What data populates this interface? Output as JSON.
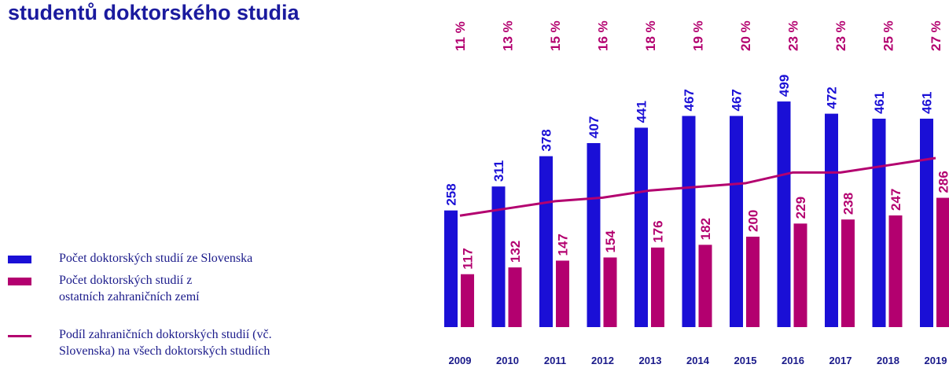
{
  "chart_data": {
    "type": "bar",
    "title": "studentů doktorského studia",
    "categories": [
      "2009",
      "2010",
      "2011",
      "2012",
      "2013",
      "2014",
      "2015",
      "2016",
      "2017",
      "2018",
      "2019"
    ],
    "series": [
      {
        "name": "Počet doktorských studií ze Slovenska",
        "color": "#1a0fd6",
        "values": [
          258,
          311,
          378,
          407,
          441,
          467,
          467,
          499,
          472,
          461,
          461
        ]
      },
      {
        "name": "Počet doktorských studií z ostatních zahraničních zemí",
        "color": "#b3006f",
        "values": [
          117,
          132,
          147,
          154,
          176,
          182,
          200,
          229,
          238,
          247,
          286
        ]
      },
      {
        "name": "Podíl zahraničních doktorských studií (vč. Slovenska) na všech doktorských studiích",
        "color": "#b3006f",
        "axis": "y2",
        "type": "line",
        "values": [
          11,
          13,
          15,
          16,
          18,
          19,
          20,
          23,
          23,
          25,
          27
        ],
        "value_labels": [
          "11 %",
          "13 %",
          "15 %",
          "16 %",
          "18 %",
          "19 %",
          "20 %",
          "23 %",
          "23 %",
          "25 %",
          "27 %"
        ]
      }
    ],
    "ylim": [
      0,
      700
    ],
    "y2lim": [
      -20,
      68
    ]
  }
}
